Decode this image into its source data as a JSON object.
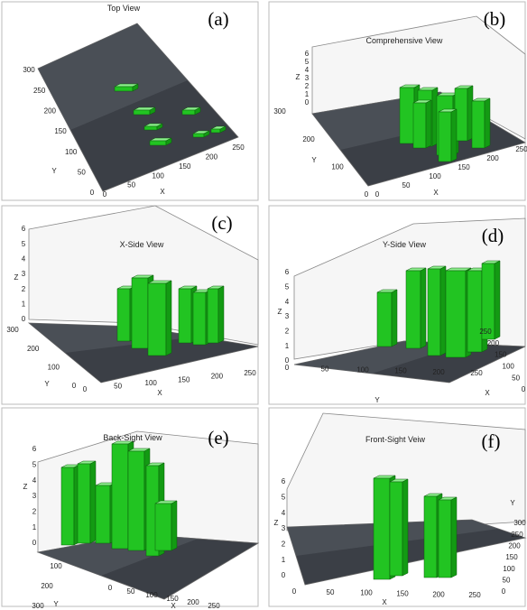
{
  "panels": [
    {
      "label": "(a)",
      "title": "Top View",
      "x_label": "X",
      "y_label": "Y",
      "x_ticks": [
        0,
        50,
        100,
        150,
        200,
        250
      ],
      "y_ticks": [
        0,
        50,
        100,
        150,
        200,
        250,
        300
      ]
    },
    {
      "label": "(b)",
      "title": "Comprehensive View",
      "x_label": "X",
      "y_label": "Y",
      "z_label": "Z",
      "x_ticks": [
        0,
        50,
        100,
        150,
        200,
        250
      ],
      "y_ticks": [
        0,
        100,
        200,
        300
      ],
      "z_ticks": [
        0,
        1,
        2,
        3,
        4,
        5,
        6
      ]
    },
    {
      "label": "(c)",
      "title": "X-Side View",
      "x_label": "X",
      "y_label": "Y",
      "z_label": "Z",
      "x_ticks": [
        0,
        50,
        100,
        150,
        200,
        250
      ],
      "y_ticks": [
        0,
        100,
        200,
        300
      ],
      "z_ticks": [
        0,
        1,
        2,
        3,
        4,
        5,
        6
      ]
    },
    {
      "label": "(d)",
      "title": "Y-Side View",
      "x_label": "X",
      "y_label": "Y",
      "z_label": "Z",
      "x_ticks": [
        0,
        50,
        100,
        150,
        200,
        250
      ],
      "y_ticks": [
        250,
        200,
        150,
        100,
        50,
        0
      ],
      "z_ticks": [
        0,
        1,
        2,
        3,
        4,
        5,
        6
      ]
    },
    {
      "label": "(e)",
      "title": "Back-Sight View",
      "x_label": "X",
      "y_label": "Y",
      "z_label": "Z",
      "x_ticks": [
        250,
        200,
        150,
        100,
        50,
        0
      ],
      "y_ticks": [
        100,
        200,
        300
      ],
      "z_ticks": [
        0,
        1,
        2,
        3,
        4,
        5,
        6
      ]
    },
    {
      "label": "(f)",
      "title": "Front-Sight Veiw",
      "x_label": "X",
      "y_label": "Y",
      "z_label": "Z",
      "x_ticks": [
        0,
        50,
        100,
        150,
        200,
        250
      ],
      "y_ticks": [
        0,
        50,
        100,
        150,
        200,
        250,
        300
      ],
      "z_ticks": [
        0,
        1,
        2,
        3,
        4,
        5,
        6
      ]
    }
  ]
}
